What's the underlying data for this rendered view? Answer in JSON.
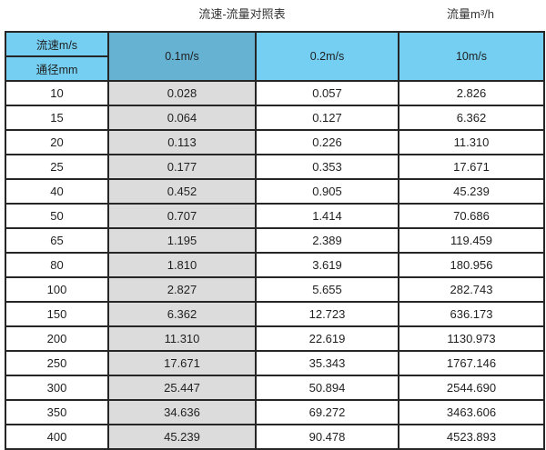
{
  "page": {
    "title": "流速-流量对照表",
    "unit_label": "流量m³/h"
  },
  "table": {
    "header": {
      "corner_top": "流速m/s",
      "corner_bottom": "通径mm",
      "columns": [
        "0.1m/s",
        "0.2m/s",
        "10m/s"
      ]
    },
    "rows": [
      [
        "10",
        "0.028",
        "0.057",
        "2.826"
      ],
      [
        "15",
        "0.064",
        "0.127",
        "6.362"
      ],
      [
        "20",
        "0.113",
        "0.226",
        "11.310"
      ],
      [
        "25",
        "0.177",
        "0.353",
        "17.671"
      ],
      [
        "40",
        "0.452",
        "0.905",
        "45.239"
      ],
      [
        "50",
        "0.707",
        "1.414",
        "70.686"
      ],
      [
        "65",
        "1.195",
        "2.389",
        "119.459"
      ],
      [
        "80",
        "1.810",
        "3.619",
        "180.956"
      ],
      [
        "100",
        "2.827",
        "5.655",
        "282.743"
      ],
      [
        "150",
        "6.362",
        "12.723",
        "636.173"
      ],
      [
        "200",
        "11.310",
        "22.619",
        "1130.973"
      ],
      [
        "250",
        "17.671",
        "35.343",
        "1767.146"
      ],
      [
        "300",
        "25.447",
        "50.894",
        "2544.690"
      ],
      [
        "350",
        "34.636",
        "69.272",
        "3463.606"
      ],
      [
        "400",
        "45.239",
        "90.478",
        "4523.893"
      ]
    ]
  },
  "colors": {
    "header_light_blue": "#74CFF2",
    "header_dark_blue": "#66B2D3",
    "column_gray": "#DCDCDC",
    "border": "#262626"
  },
  "chart_data": {
    "type": "table",
    "title": "流速-流量对照表",
    "unit": "流量m³/h",
    "columns": [
      "通径mm",
      "0.1m/s",
      "0.2m/s",
      "10m/s"
    ],
    "rows": [
      [
        10,
        0.028,
        0.057,
        2.826
      ],
      [
        15,
        0.064,
        0.127,
        6.362
      ],
      [
        20,
        0.113,
        0.226,
        11.31
      ],
      [
        25,
        0.177,
        0.353,
        17.671
      ],
      [
        40,
        0.452,
        0.905,
        45.239
      ],
      [
        50,
        0.707,
        1.414,
        70.686
      ],
      [
        65,
        1.195,
        2.389,
        119.459
      ],
      [
        80,
        1.81,
        3.619,
        180.956
      ],
      [
        100,
        2.827,
        5.655,
        282.743
      ],
      [
        150,
        6.362,
        12.723,
        636.173
      ],
      [
        200,
        11.31,
        22.619,
        1130.973
      ],
      [
        250,
        17.671,
        35.343,
        1767.146
      ],
      [
        300,
        25.447,
        50.894,
        2544.69
      ],
      [
        350,
        34.636,
        69.272,
        3463.606
      ],
      [
        400,
        45.239,
        90.478,
        4523.893
      ]
    ]
  }
}
